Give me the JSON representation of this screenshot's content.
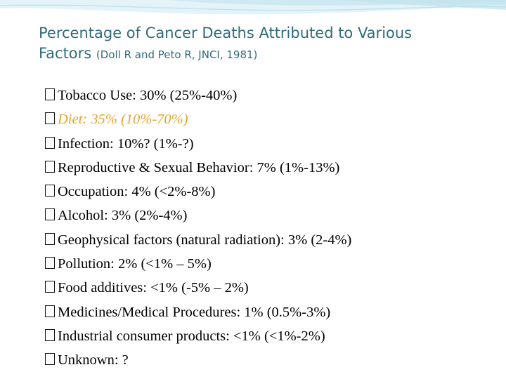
{
  "title": {
    "main_line1": "Percentage of Cancer Deaths Attributed to Various",
    "main_line2": "Factors",
    "source": "(Doll R and Peto R, JNCI, 1981)"
  },
  "colors": {
    "title": "#2f6b7c",
    "highlight": "#e5a32a",
    "band": "#d8eef5"
  },
  "items": [
    "Tobacco Use: 30% (25%-40%)",
    "Diet: 35% (10%-70%)",
    "Infection: 10%? (1%-?)",
    "Reproductive & Sexual Behavior: 7% (1%-13%)",
    "Occupation: 4% (<2%-8%)",
    "Alcohol: 3% (2%-4%)",
    "Geophysical factors (natural radiation): 3% (2-4%)",
    "Pollution: 2% (<1% – 5%)",
    "Food additives: <1% (-5% – 2%)",
    "Medicines/Medical Procedures: 1% (0.5%-3%)",
    "Industrial consumer products: <1% (<1%-2%)",
    "Unknown: ?"
  ]
}
